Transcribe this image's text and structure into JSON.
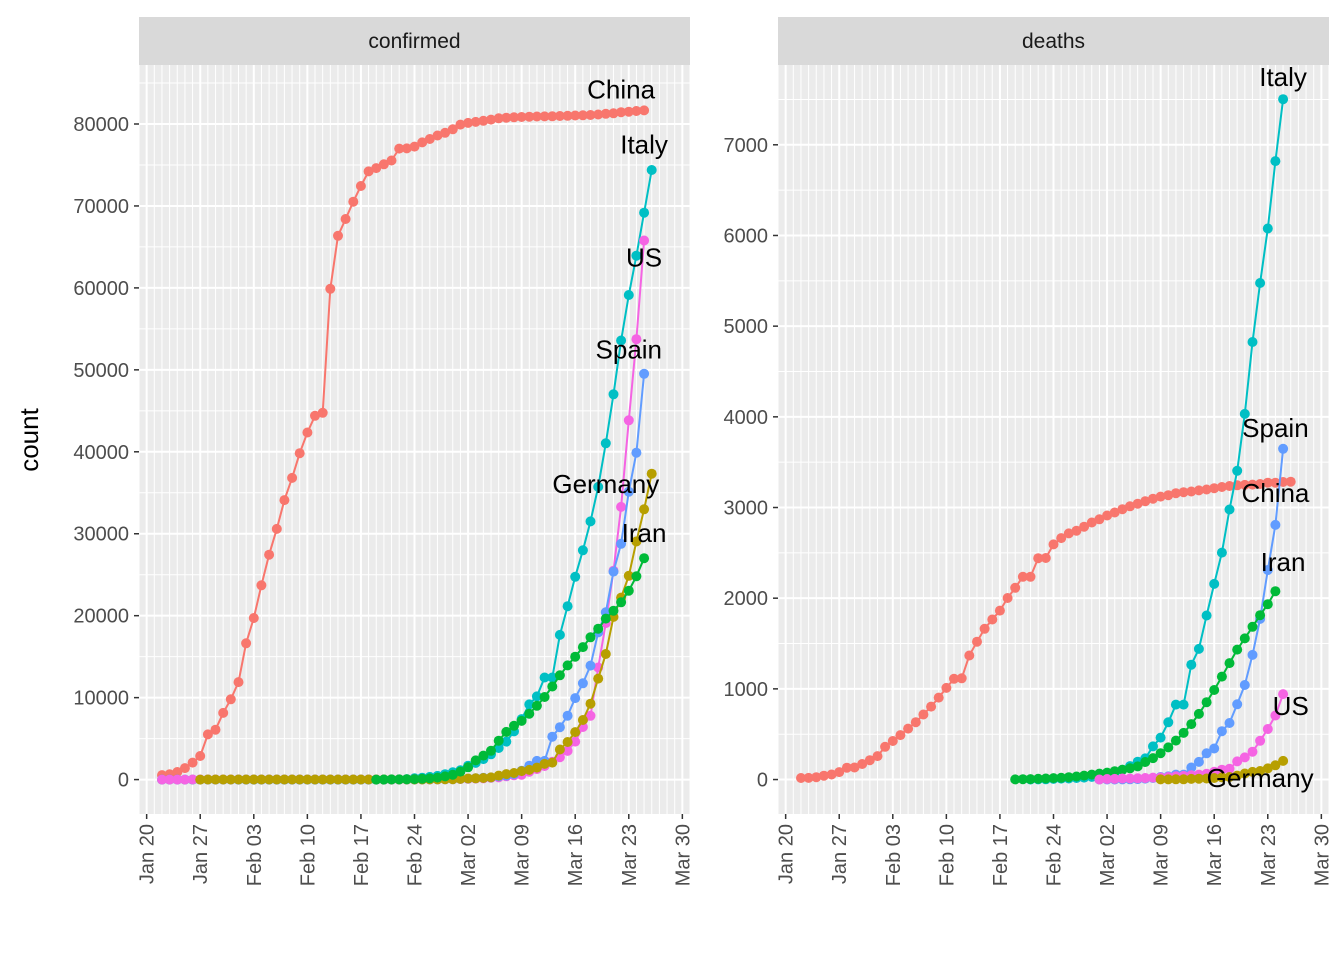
{
  "chart_data": {
    "type": "line",
    "ylabel": "count",
    "xlabel": "",
    "x_tick_labels": [
      "Jan 20",
      "Jan 27",
      "Feb 03",
      "Feb 10",
      "Feb 17",
      "Feb 24",
      "Mar 02",
      "Mar 09",
      "Mar 16",
      "Mar 23",
      "Mar 30"
    ],
    "x_ticks": [
      "2020-01-20",
      "2020-01-27",
      "2020-02-03",
      "2020-02-10",
      "2020-02-17",
      "2020-02-24",
      "2020-03-02",
      "2020-03-09",
      "2020-03-16",
      "2020-03-23",
      "2020-03-30"
    ],
    "xlim": [
      "2020-01-19",
      "2020-03-31"
    ],
    "grid": true,
    "legend": "none",
    "facets": [
      {
        "name": "confirmed",
        "ylim": [
          -4200,
          87200
        ],
        "y_ticks": [
          0,
          10000,
          20000,
          30000,
          40000,
          50000,
          60000,
          70000,
          80000
        ],
        "series": [
          {
            "name": "China",
            "color": "#F8766D",
            "start": "2020-01-22",
            "values": [
              548,
              643,
              920,
              1406,
              2075,
              2877,
              5509,
              6087,
              8141,
              9802,
              11891,
              16630,
              19716,
              23707,
              27440,
              30587,
              34110,
              36814,
              39829,
              42354,
              44386,
              44759,
              59895,
              66358,
              68413,
              70513,
              72434,
              74211,
              74619,
              75077,
              75550,
              77001,
              77022,
              77241,
              77754,
              78166,
              78600,
              78928,
              79356,
              79932,
              80136,
              80261,
              80386,
              80537,
              80690,
              80770,
              80823,
              80860,
              80887,
              80921,
              80932,
              80945,
              80977,
              81003,
              81033,
              81058,
              81102,
              81156,
              81250,
              81305,
              81435,
              81498,
              81591,
              81661
            ]
          },
          {
            "name": "Italy",
            "color": "#00BFC4",
            "start": "2020-01-22",
            "values": [
              0,
              0,
              0,
              0,
              0,
              0,
              0,
              0,
              0,
              2,
              2,
              2,
              2,
              2,
              2,
              2,
              3,
              3,
              3,
              3,
              3,
              3,
              3,
              3,
              3,
              3,
              3,
              3,
              3,
              3,
              3,
              20,
              62,
              155,
              229,
              322,
              453,
              655,
              888,
              1128,
              1694,
              2036,
              2502,
              3089,
              3858,
              4636,
              5883,
              7375,
              9172,
              10149,
              12462,
              12462,
              17660,
              21157,
              24747,
              27980,
              31506,
              35713,
              41035,
              47021,
              53578,
              59138,
              63927,
              69176,
              74386
            ]
          },
          {
            "name": "US",
            "color": "#F564E3",
            "start": "2020-01-22",
            "values": [
              1,
              1,
              2,
              2,
              5,
              5,
              5,
              5,
              5,
              7,
              8,
              8,
              11,
              11,
              11,
              11,
              11,
              11,
              11,
              11,
              12,
              12,
              13,
              13,
              13,
              13,
              13,
              13,
              13,
              13,
              15,
              15,
              15,
              51,
              51,
              57,
              58,
              60,
              68,
              74,
              98,
              118,
              149,
              217,
              262,
              402,
              518,
              583,
              959,
              1281,
              1663,
              2179,
              2727,
              3499,
              4632,
              6421,
              7786,
              13680,
              19101,
              25493,
              33276,
              43847,
              53740,
              65778
            ]
          },
          {
            "name": "Spain",
            "color": "#619CFF",
            "start": "2020-02-01",
            "values": [
              1,
              1,
              1,
              1,
              1,
              1,
              1,
              1,
              2,
              2,
              2,
              2,
              2,
              2,
              2,
              2,
              2,
              2,
              2,
              2,
              2,
              2,
              2,
              2,
              6,
              13,
              15,
              32,
              45,
              84,
              120,
              165,
              222,
              259,
              400,
              500,
              673,
              1073,
              1695,
              2277,
              2277,
              5232,
              6391,
              7798,
              9942,
              11748,
              13910,
              17963,
              20410,
              25374,
              28768,
              35136,
              39885,
              49515
            ]
          },
          {
            "name": "Germany",
            "color": "#B79F00",
            "start": "2020-01-27",
            "values": [
              1,
              4,
              4,
              4,
              5,
              8,
              10,
              12,
              12,
              12,
              12,
              13,
              13,
              14,
              14,
              16,
              16,
              16,
              16,
              16,
              16,
              16,
              16,
              16,
              16,
              16,
              16,
              16,
              16,
              16,
              17,
              27,
              46,
              48,
              79,
              130,
              159,
              196,
              262,
              482,
              670,
              799,
              1040,
              1176,
              1457,
              1908,
              2078,
              3675,
              4585,
              5795,
              7272,
              9257,
              12327,
              15320,
              19848,
              22213,
              24873,
              29056,
              32986,
              37323
            ]
          },
          {
            "name": "Iran",
            "color": "#00BA38",
            "start": "2020-02-19",
            "values": [
              2,
              5,
              18,
              28,
              43,
              61,
              95,
              139,
              245,
              388,
              593,
              978,
              1501,
              2336,
              2922,
              3513,
              4747,
              5823,
              6566,
              7161,
              8042,
              9000,
              10075,
              11364,
              12729,
              13938,
              14991,
              16169,
              17361,
              18407,
              19644,
              20610,
              21638,
              23049,
              24811,
              27017
            ]
          }
        ],
        "labels": [
          {
            "text": "China",
            "x": "2020-03-22",
            "y": 83100
          },
          {
            "text": "Italy",
            "x": "2020-03-25",
            "y": 76400
          },
          {
            "text": "US",
            "x": "2020-03-25",
            "y": 62600
          },
          {
            "text": "Spain",
            "x": "2020-03-23",
            "y": 51400
          },
          {
            "text": "Germany",
            "x": "2020-03-20",
            "y": 35000
          },
          {
            "text": "Iran",
            "x": "2020-03-25",
            "y": 29000
          }
        ]
      },
      {
        "name": "deaths",
        "ylim": [
          -380,
          7880
        ],
        "y_ticks": [
          0,
          1000,
          2000,
          3000,
          4000,
          5000,
          6000,
          7000
        ],
        "series": [
          {
            "name": "China",
            "color": "#F8766D",
            "start": "2020-01-22",
            "values": [
              17,
              18,
              26,
              42,
              56,
              82,
              131,
              133,
              171,
              213,
              259,
              361,
              425,
              490,
              562,
              632,
              717,
              804,
              904,
              1011,
              1111,
              1116,
              1368,
              1520,
              1662,
              1765,
              1863,
              2002,
              2114,
              2236,
              2236,
              2441,
              2443,
              2593,
              2663,
              2715,
              2744,
              2788,
              2835,
              2870,
              2912,
              2945,
              2981,
              3013,
              3042,
              3070,
              3097,
              3120,
              3136,
              3158,
              3169,
              3176,
              3189,
              3199,
              3213,
              3226,
              3237,
              3245,
              3249,
              3253,
              3259,
              3274,
              3274,
              3281,
              3285
            ]
          },
          {
            "name": "Italy",
            "color": "#00BFC4",
            "start": "2020-02-21",
            "values": [
              1,
              2,
              3,
              7,
              10,
              12,
              17,
              21,
              29,
              34,
              52,
              79,
              107,
              148,
              197,
              233,
              366,
              463,
              631,
              827,
              827,
              1266,
              1441,
              1809,
              2158,
              2503,
              2978,
              3405,
              4032,
              4825,
              5476,
              6077,
              6820,
              7503
            ]
          },
          {
            "name": "Spain",
            "color": "#619CFF",
            "start": "2020-03-01",
            "values": [
              0,
              0,
              1,
              2,
              3,
              5,
              10,
              17,
              28,
              35,
              54,
              55,
              133,
              195,
              289,
              342,
              533,
              623,
              830,
              1043,
              1375,
              1772,
              2311,
              2808,
              3647
            ]
          },
          {
            "name": "Iran",
            "color": "#00BA38",
            "start": "2020-02-19",
            "values": [
              2,
              4,
              5,
              8,
              12,
              16,
              19,
              26,
              34,
              43,
              54,
              66,
              77,
              92,
              107,
              124,
              145,
              194,
              237,
              291,
              354,
              429,
              514,
              611,
              724,
              853,
              988,
              1135,
              1284,
              1433,
              1556,
              1685,
              1812,
              1934,
              2077
            ]
          },
          {
            "name": "US",
            "color": "#F564E3",
            "start": "2020-03-01",
            "values": [
              1,
              6,
              7,
              11,
              12,
              14,
              17,
              21,
              22,
              28,
              36,
              40,
              47,
              54,
              63,
              85,
              108,
              118,
              200,
              244,
              307,
              427,
              557,
              706,
              942
            ]
          },
          {
            "name": "Germany",
            "color": "#B79F00",
            "start": "2020-03-09",
            "values": [
              2,
              2,
              3,
              3,
              7,
              9,
              11,
              17,
              24,
              28,
              44,
              67,
              84,
              94,
              123,
              157,
              206
            ]
          }
        ],
        "labels": [
          {
            "text": "Italy",
            "x": "2020-03-25",
            "y": 7650
          },
          {
            "text": "Spain",
            "x": "2020-03-24",
            "y": 3780
          },
          {
            "text": "China",
            "x": "2020-03-24",
            "y": 3060
          },
          {
            "text": "Iran",
            "x": "2020-03-25",
            "y": 2300
          },
          {
            "text": "US",
            "x": "2020-03-26",
            "y": 710
          },
          {
            "text": "Germany",
            "x": "2020-03-22",
            "y": -80
          }
        ]
      }
    ]
  }
}
